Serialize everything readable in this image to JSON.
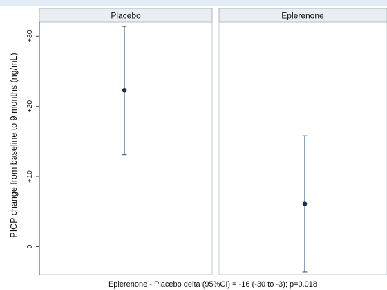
{
  "chart_data": {
    "type": "scatter",
    "subtype": "mean-with-95ci-error-bars",
    "panels": [
      "Placebo",
      "Eplerenone"
    ],
    "ylabel": "PICP change from baseline to 9 months (ng/mL)",
    "xlabel": "Eplerenone - Placebo delta (95%CI) = -16 (-30 to -3); p=0.018",
    "ylim": [
      -4,
      32
    ],
    "yticks": [
      {
        "value": 0,
        "label": "0"
      },
      {
        "value": 10,
        "label": "+10"
      },
      {
        "value": 20,
        "label": "+20"
      },
      {
        "value": 30,
        "label": "+30"
      }
    ],
    "points": [
      {
        "group": "Placebo",
        "mean": 22.3,
        "ci_low": 13.1,
        "ci_high": 31.4
      },
      {
        "group": "Eplerenone",
        "mean": 6.1,
        "ci_low": -3.6,
        "ci_high": 15.8
      }
    ],
    "grid": false,
    "colors": {
      "marker": "#1b2f4e",
      "error_bar": "#3f6586",
      "panel_strip": "#e9eef3",
      "panel_border": "#9aa6b2"
    }
  }
}
